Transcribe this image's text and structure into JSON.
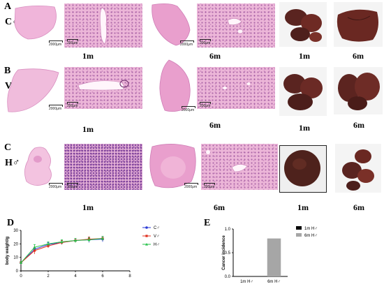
{
  "panels": {
    "A": {
      "letter": "A",
      "group": "C♂"
    },
    "B": {
      "letter": "B",
      "group": "V♂"
    },
    "C": {
      "letter": "C",
      "group": "H♂"
    },
    "D": {
      "letter": "D"
    },
    "E": {
      "letter": "E"
    }
  },
  "time_labels": {
    "m1": "1m",
    "m6": "6m"
  },
  "scale_labels": {
    "big": "2000μm",
    "small": "200μm"
  },
  "colors": {
    "C": "#2b3bd6",
    "V": "#e0301e",
    "H": "#26c24a",
    "bar_6m": "#a6a6a6",
    "bar_1m": "#000000"
  },
  "chart_data": [
    {
      "type": "line",
      "xlabel": "",
      "ylabel": "body weight/g",
      "xlim": [
        0,
        8
      ],
      "ylim": [
        0,
        30
      ],
      "xticks": [
        "0",
        "2",
        "4",
        "6",
        "8"
      ],
      "yticks": [
        "0",
        "10",
        "20",
        "30"
      ],
      "x": [
        0,
        1,
        2,
        3,
        4,
        5,
        6
      ],
      "series": [
        {
          "name": "C♂",
          "values": [
            6,
            16,
            19.5,
            21,
            22.5,
            23,
            23.5
          ],
          "errors": [
            1.0,
            1.5,
            1.5,
            1.5,
            1.5,
            2.0,
            2.0
          ],
          "marker": "circle"
        },
        {
          "name": "V♂",
          "values": [
            6,
            15,
            18.5,
            21,
            22.5,
            23.5,
            24
          ],
          "errors": [
            1.0,
            2.5,
            1.5,
            1.5,
            1.5,
            1.5,
            1.5
          ],
          "marker": "square"
        },
        {
          "name": "H♂",
          "values": [
            6,
            17.5,
            20,
            21.5,
            22.5,
            23,
            24
          ],
          "errors": [
            1.0,
            2.0,
            1.5,
            1.5,
            1.5,
            1.5,
            1.5
          ],
          "marker": "triangle"
        }
      ],
      "legend": "top-right"
    },
    {
      "type": "bar",
      "ylabel": "Cancer incidence",
      "ylim": [
        0,
        1
      ],
      "yticks": [
        "0.0",
        "0.5",
        "1.0"
      ],
      "categories": [
        "1m H♂",
        "6m H♂"
      ],
      "values": [
        0,
        0.8
      ],
      "legend_entries": [
        "1m H♂",
        "6m H♂"
      ],
      "legend": "top-right"
    }
  ]
}
